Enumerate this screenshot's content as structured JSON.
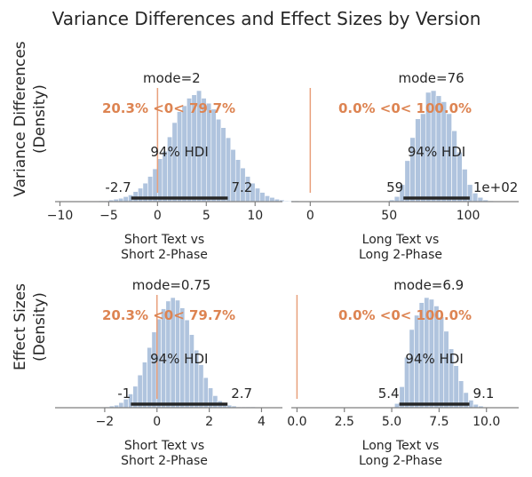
{
  "figure_title": "Variance Differences and Effect Sizes by Version",
  "row_labels": [
    [
      "Variance Differences",
      "(Density)"
    ],
    [
      "Effect Sizes",
      "(Density)"
    ]
  ],
  "colors": {
    "bars": "#b0c4de",
    "bar_edge": "#ffffff",
    "reference_line": "#e8a07c",
    "reference_text": "#dd8452",
    "hdi_line": "#262626",
    "axis": "#7f7f7f",
    "text": "#262626"
  },
  "chart_data": [
    {
      "type": "bar",
      "panel": "Variance Differences, Short Text vs Short 2-Phase",
      "xlabel": [
        "Short Text vs",
        "Short 2-Phase"
      ],
      "xlim": [
        -10.5,
        12.8
      ],
      "xticks": [
        -10,
        -5,
        0,
        5,
        10
      ],
      "xtick_labels": [
        "−10",
        "−5",
        "0",
        "5",
        "10"
      ],
      "mode_text": "mode=2",
      "reference_text": "20.3% <0< 79.7%",
      "reference_value": 0,
      "hdi_text": "94% HDI",
      "hdi": [
        -2.7,
        7.2
      ],
      "hdi_labels": [
        "-2.7",
        "7.2"
      ],
      "histogram": {
        "bin_start": -6.0,
        "bin_width": 0.5,
        "counts": [
          1,
          1,
          2,
          3,
          4,
          6,
          8,
          12,
          16,
          22,
          30,
          39,
          51,
          60,
          77,
          94,
          107,
          114,
          123,
          127,
          132,
          123,
          117,
          110,
          98,
          88,
          76,
          62,
          50,
          40,
          30,
          22,
          16,
          11,
          7,
          5,
          3,
          2,
          1,
          1,
          1
        ]
      }
    },
    {
      "type": "bar",
      "panel": "Variance Differences, Long Text vs Long 2-Phase",
      "xlabel": [
        "Long Text vs",
        "Long 2-Phase"
      ],
      "xlim": [
        -12,
        132
      ],
      "xticks": [
        0,
        50,
        100
      ],
      "xtick_labels": [
        "0",
        "50",
        "100"
      ],
      "mode_text": "mode=76",
      "reference_text": "0.0% <0< 100.0%",
      "reference_value": 0,
      "hdi_text": "94% HDI",
      "hdi": [
        59,
        101
      ],
      "hdi_labels": [
        "59",
        "1e+02"
      ],
      "histogram": {
        "bin_start": 50,
        "bin_width": 3.3,
        "counts": [
          2,
          6,
          20,
          48,
          75,
          97,
          103,
          128,
          130,
          124,
          117,
          103,
          83,
          58,
          38,
          20,
          10,
          5,
          2,
          1
        ]
      }
    },
    {
      "type": "bar",
      "panel": "Effect Sizes, Short Text vs Short 2-Phase",
      "xlabel": [
        "Short Text vs",
        "Short 2-Phase"
      ],
      "xlim": [
        -3.9,
        4.8
      ],
      "xticks": [
        -2,
        0,
        2,
        4
      ],
      "xtick_labels": [
        "−2",
        "0",
        "2",
        "4"
      ],
      "mode_text": "mode=0.75",
      "reference_text": "20.3% <0< 79.7%",
      "reference_value": 0,
      "hdi_text": "94% HDI",
      "hdi": [
        -1.0,
        2.7
      ],
      "hdi_labels": [
        "-1",
        "2.7"
      ],
      "histogram": {
        "bin_start": -2.0,
        "bin_width": 0.18,
        "counts": [
          1,
          2,
          3,
          6,
          10,
          16,
          25,
          38,
          53,
          70,
          88,
          103,
          115,
          124,
          128,
          125,
          116,
          102,
          85,
          67,
          50,
          35,
          23,
          14,
          8,
          5,
          3,
          2,
          1,
          1,
          1,
          1
        ]
      }
    },
    {
      "type": "bar",
      "panel": "Effect Sizes, Long Text vs Long 2-Phase",
      "xlabel": [
        "Long Text vs",
        "Long 2-Phase"
      ],
      "xlim": [
        -0.3,
        11.7
      ],
      "xticks": [
        0,
        2.5,
        5,
        7.5,
        10
      ],
      "xtick_labels": [
        "0.0",
        "2.5",
        "5.0",
        "7.5",
        "10.0"
      ],
      "mode_text": "mode=6.9",
      "reference_text": "0.0% <0< 100.0%",
      "reference_value": 0,
      "hdi_text": "94% HDI",
      "hdi": [
        5.4,
        9.1
      ],
      "hdi_labels": [
        "5.4",
        "9.1"
      ],
      "histogram": {
        "bin_start": 5.15,
        "bin_width": 0.26,
        "counts": [
          5,
          25,
          60,
          93,
          110,
          125,
          131,
          129,
          121,
          108,
          91,
          70,
          50,
          32,
          18,
          9,
          4,
          2
        ]
      }
    }
  ]
}
